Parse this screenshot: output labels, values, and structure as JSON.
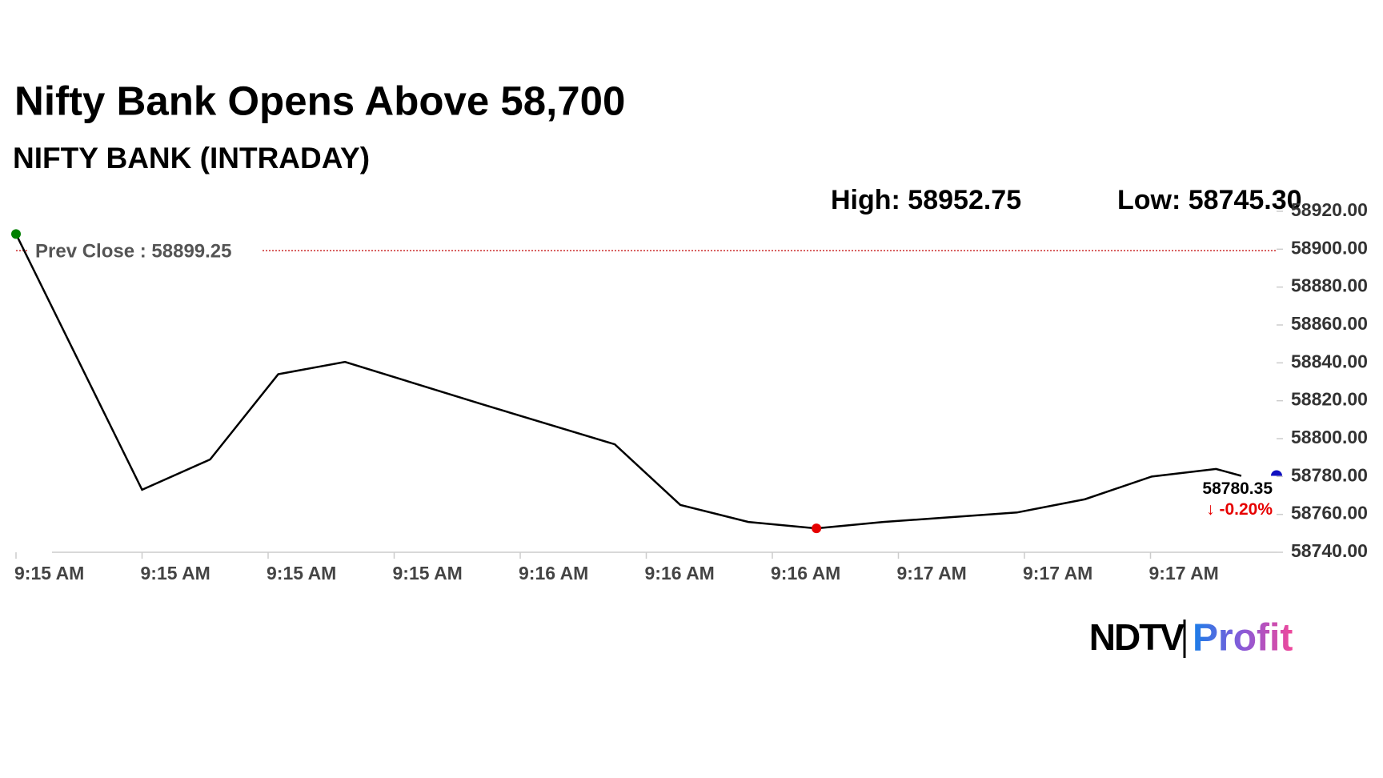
{
  "chart_data": {
    "type": "line",
    "title": "Nifty Bank Opens Above 58,700",
    "subtitle": "NIFTY BANK (INTRADAY)",
    "high_text": "High: 58952.75",
    "low_text": "Low: 58745.30",
    "prev_close": {
      "value": 58899.25,
      "label": "Prev Close : 58899.25"
    },
    "change_text": "↓ -0.20%",
    "x": [
      0,
      1.0,
      1.54,
      2.08,
      2.61,
      3.68,
      4.75,
      5.27,
      5.81,
      6.35,
      6.88,
      7.94,
      8.48,
      9.01,
      9.52,
      9.72
    ],
    "series": [
      {
        "name": "NIFTY BANK",
        "color": "#000000",
        "values": [
          58908,
          58773,
          58789,
          58834,
          58840.5,
          58818.5,
          58797,
          58765,
          58756,
          58752.6,
          58756,
          58761,
          58768,
          58780,
          58784,
          58780.35
        ]
      }
    ],
    "xlim": [
      0,
      10
    ],
    "xticks": [
      {
        "value": 0,
        "label": "9:15 AM"
      },
      {
        "value": 1,
        "label": "9:15 AM"
      },
      {
        "value": 2,
        "label": "9:15 AM"
      },
      {
        "value": 3,
        "label": "9:15 AM"
      },
      {
        "value": 4,
        "label": "9:16 AM"
      },
      {
        "value": 5,
        "label": "9:16 AM"
      },
      {
        "value": 6,
        "label": "9:16 AM"
      },
      {
        "value": 7,
        "label": "9:17 AM"
      },
      {
        "value": 8,
        "label": "9:17 AM"
      },
      {
        "value": 9,
        "label": "9:17 AM"
      }
    ],
    "ylim": [
      58740,
      58920
    ],
    "yticks": [
      {
        "value": 58740,
        "label": "58740.00"
      },
      {
        "value": 58760,
        "label": "58760.00"
      },
      {
        "value": 58780,
        "label": "58780.00"
      },
      {
        "value": 58800,
        "label": "58800.00"
      },
      {
        "value": 58820,
        "label": "58820.00"
      },
      {
        "value": 58840,
        "label": "58840.00"
      },
      {
        "value": 58860,
        "label": "58860.00"
      },
      {
        "value": 58880,
        "label": "58880.00"
      },
      {
        "value": 58900,
        "label": "58900.00"
      },
      {
        "value": 58920,
        "label": "58920.00"
      }
    ],
    "start_color": "#008000",
    "low_color": "#e60000",
    "last_color": "#1010c0",
    "change_color": "#e60000",
    "prev_close_color": "#c00000"
  },
  "logo": {
    "left": "NDTV",
    "right": "Profit"
  }
}
